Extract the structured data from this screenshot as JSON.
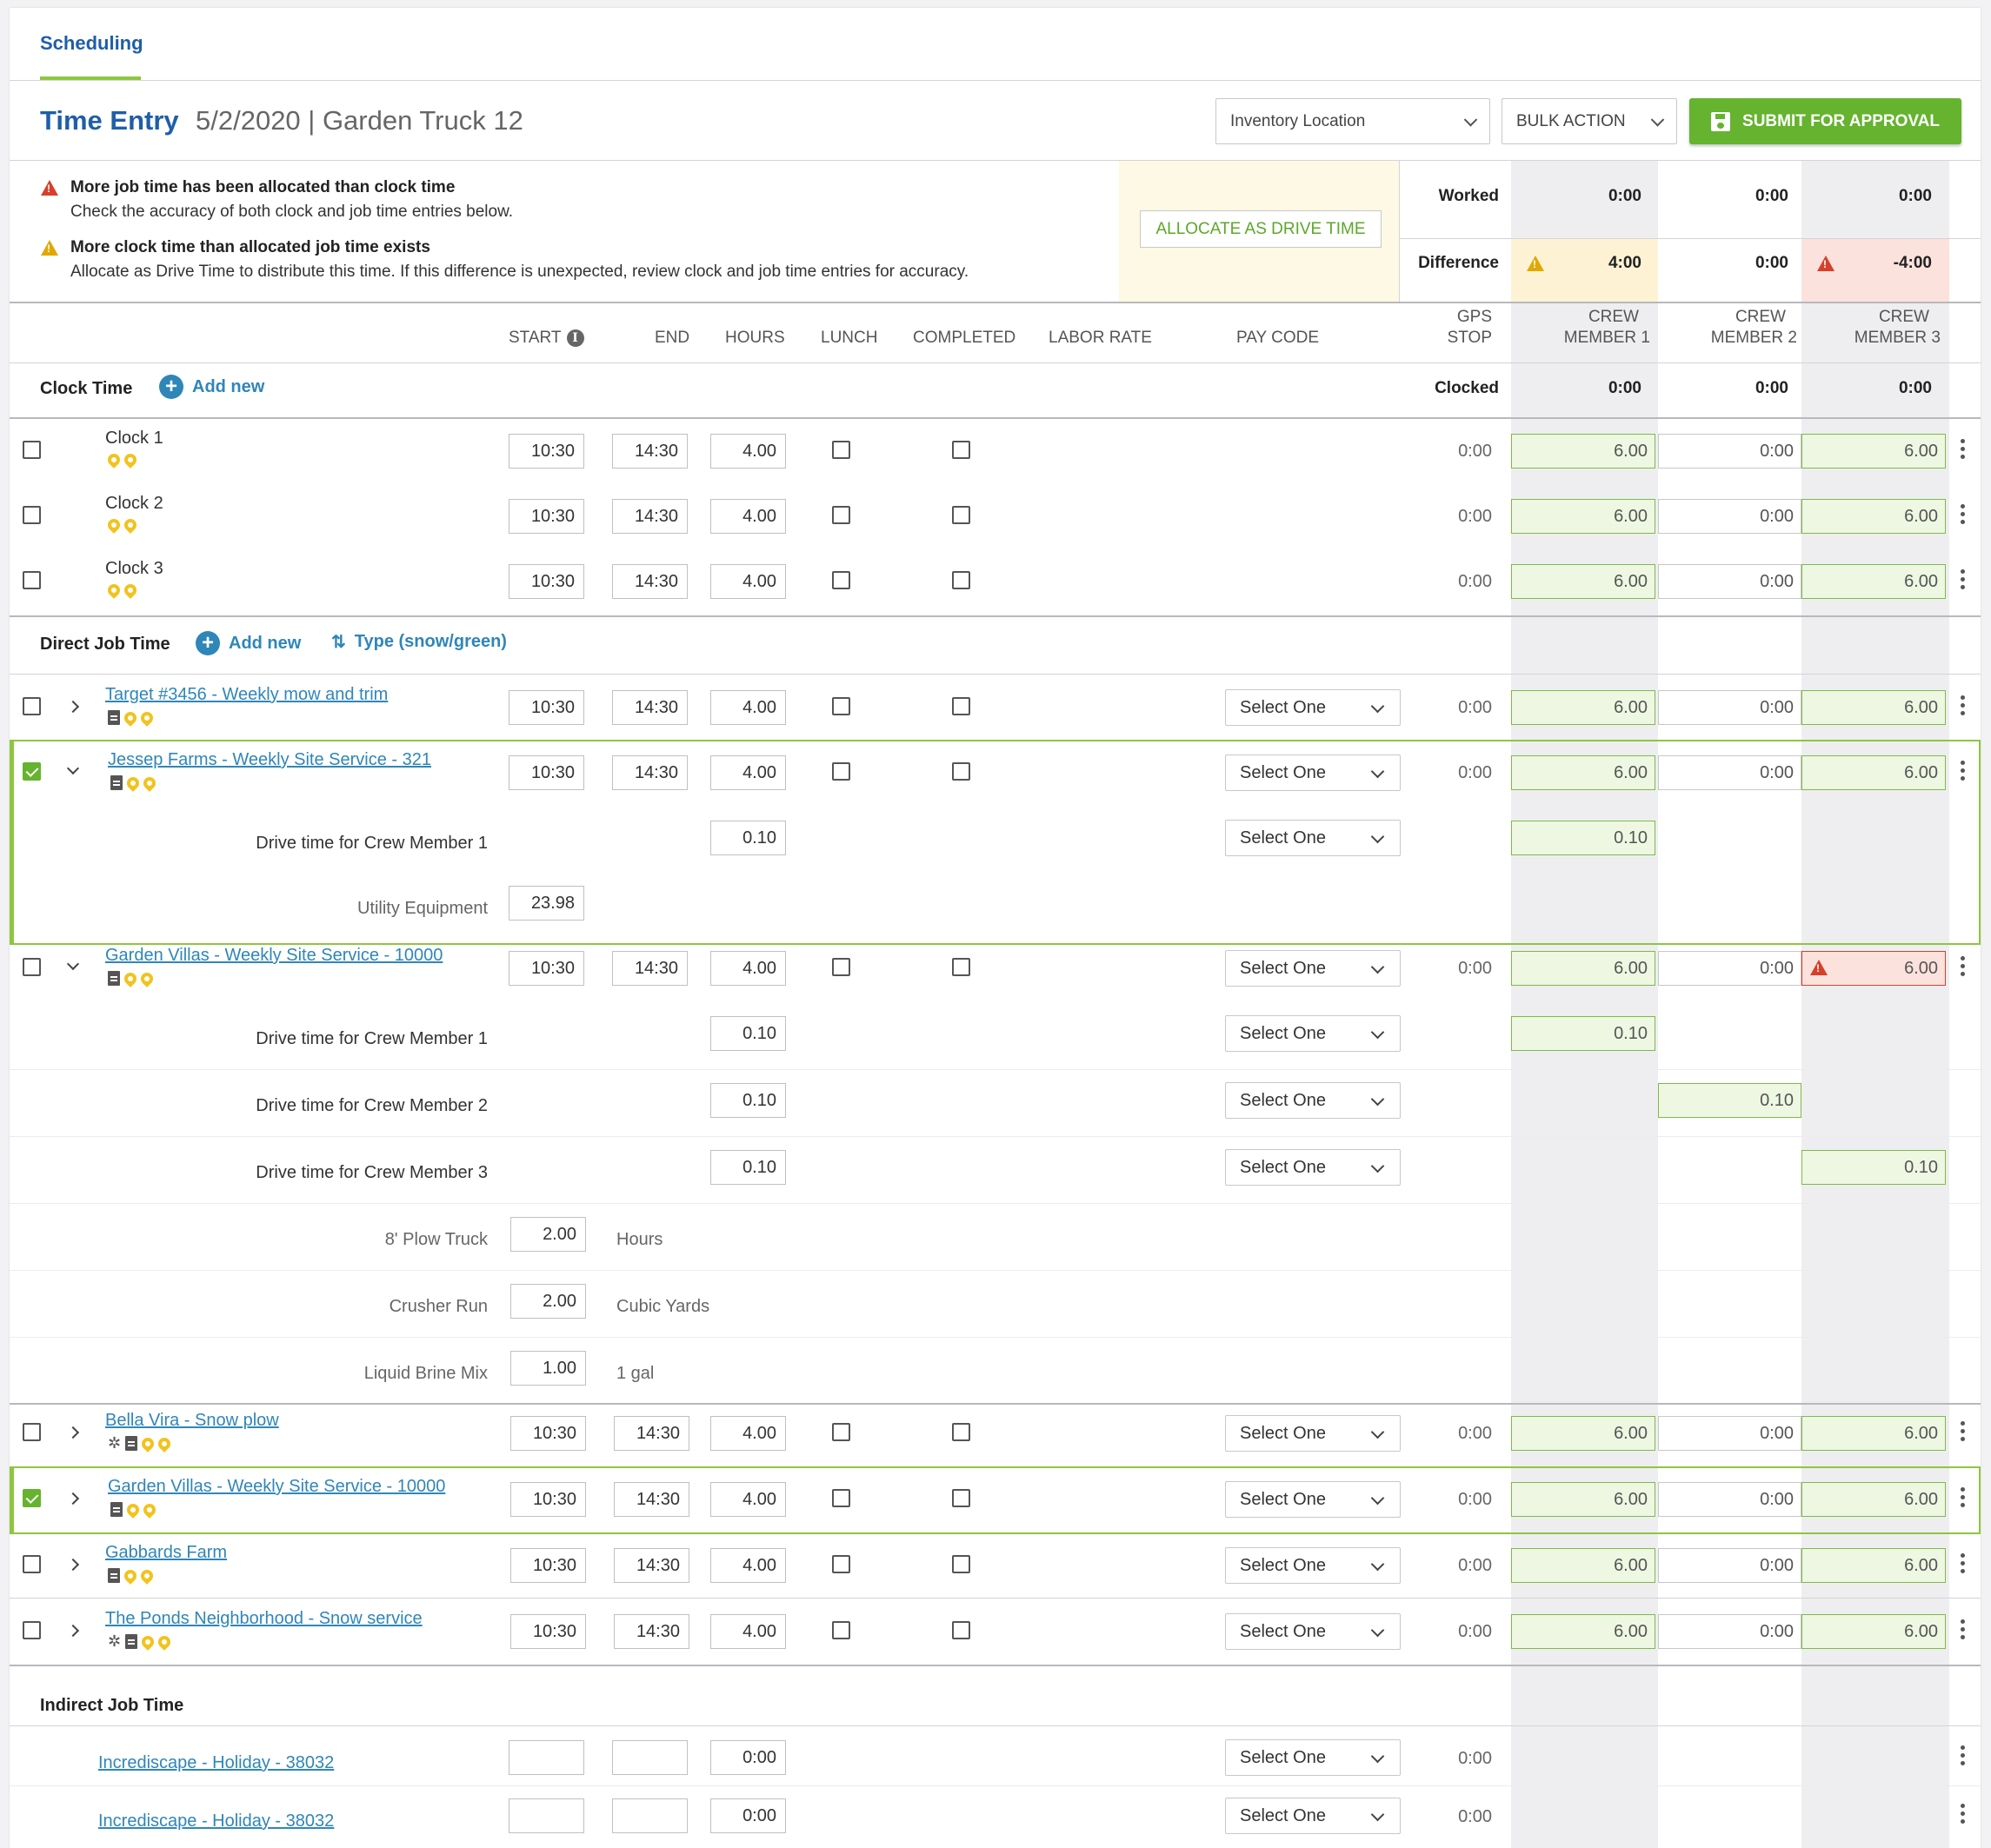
{
  "tab": "Scheduling",
  "header": {
    "title": "Time Entry",
    "subtitle": "5/2/2020 | Garden Truck 12",
    "inventory_location": "Inventory Location",
    "bulk_action": "BULK ACTION",
    "submit": "SUBMIT FOR APPROVAL"
  },
  "alerts": {
    "error_title": "More job time has been allocated than clock time",
    "error_text": "Check the accuracy of both clock and job time entries below.",
    "warn_title": "More clock time than allocated job time exists",
    "warn_text": "Allocate as Drive Time to distribute this time. If this difference is unexpected, review clock and job time entries for accuracy.",
    "allocate_button": "ALLOCATE AS DRIVE TIME"
  },
  "summary": {
    "worked_label": "Worked",
    "worked": [
      "0:00",
      "0:00",
      "0:00"
    ],
    "difference_label": "Difference",
    "difference": [
      "4:00",
      "0:00",
      "-4:00"
    ],
    "clocked_label": "Clocked",
    "clocked": [
      "0:00",
      "0:00",
      "0:00"
    ]
  },
  "columns": {
    "start": "START",
    "end": "END",
    "hours": "HOURS",
    "lunch": "LUNCH",
    "completed": "COMPLETED",
    "labor_rate": "LABOR RATE",
    "pay_code": "PAY CODE",
    "gps1": "GPS",
    "gps2": "STOP",
    "crew": "CREW",
    "m1": "MEMBER 1",
    "m2": "MEMBER 2",
    "m3": "MEMBER 3"
  },
  "clock_section": {
    "title": "Clock Time",
    "add_new": "Add new",
    "rows": [
      {
        "label": "Clock 1",
        "start": "10:30",
        "end": "14:30",
        "hours": "4.00",
        "gps": "0:00",
        "c1": "6.00",
        "c2": "0:00",
        "c3": "6.00"
      },
      {
        "label": "Clock 2",
        "start": "10:30",
        "end": "14:30",
        "hours": "4.00",
        "gps": "0:00",
        "c1": "6.00",
        "c2": "0:00",
        "c3": "6.00"
      },
      {
        "label": "Clock 3",
        "start": "10:30",
        "end": "14:30",
        "hours": "4.00",
        "gps": "0:00",
        "c1": "6.00",
        "c2": "0:00",
        "c3": "6.00"
      }
    ]
  },
  "direct_section": {
    "title": "Direct Job Time",
    "add_new": "Add new",
    "type": "Type (snow/green)",
    "select_one": "Select One",
    "jobs": [
      {
        "name": "Target #3456 - Weekly mow and trim",
        "start": "10:30",
        "end": "14:30",
        "hours": "4.00",
        "gps": "0:00",
        "c1": "6.00",
        "c2": "0:00",
        "c3": "6.00"
      },
      {
        "name": "Jessep Farms - Weekly Site Service  - 321",
        "start": "10:30",
        "end": "14:30",
        "hours": "4.00",
        "gps": "0:00",
        "c1": "6.00",
        "c2": "0:00",
        "c3": "6.00"
      },
      {
        "name": "Garden Villas - Weekly Site Service  - 10000",
        "start": "10:30",
        "end": "14:30",
        "hours": "4.00",
        "gps": "0:00",
        "c1": "6.00",
        "c2": "0:00",
        "c3": "6.00"
      },
      {
        "name": "Bella Vira - Snow plow",
        "start": "10:30",
        "end": "14:30",
        "hours": "4.00",
        "gps": "0:00",
        "c1": "6.00",
        "c2": "0:00",
        "c3": "6.00"
      },
      {
        "name": "Garden Villas - Weekly Site Service - 10000",
        "start": "10:30",
        "end": "14:30",
        "hours": "4.00",
        "gps": "0:00",
        "c1": "6.00",
        "c2": "0:00",
        "c3": "6.00"
      },
      {
        "name": "Gabbards Farm",
        "start": "10:30",
        "end": "14:30",
        "hours": "4.00",
        "gps": "0:00",
        "c1": "6.00",
        "c2": "0:00",
        "c3": "6.00"
      },
      {
        "name": "The Ponds Neighborhood - Snow service",
        "start": "10:30",
        "end": "14:30",
        "hours": "4.00",
        "gps": "0:00",
        "c1": "6.00",
        "c2": "0:00",
        "c3": "6.00"
      }
    ],
    "jessep_sub": {
      "drive_label": "Drive time for Crew Member 1",
      "drive_hours": "0.10",
      "drive_c1": "0.10",
      "equip_label": "Utility Equipment",
      "equip_value": "23.98"
    },
    "garden_sub": {
      "drive": [
        {
          "label": "Drive time for Crew Member 1",
          "hours": "0.10",
          "val": "0.10"
        },
        {
          "label": "Drive time for Crew Member 2",
          "hours": "0.10",
          "val": "0.10"
        },
        {
          "label": "Drive time for Crew Member 3",
          "hours": "0.10",
          "val": "0.10"
        }
      ],
      "materials": [
        {
          "label": "8' Plow Truck",
          "value": "2.00",
          "unit": "Hours"
        },
        {
          "label": "Crusher Run",
          "value": "2.00",
          "unit": "Cubic Yards"
        },
        {
          "label": "Liquid Brine Mix",
          "value": "1.00",
          "unit": "1 gal"
        }
      ]
    }
  },
  "indirect_section": {
    "title": "Indirect Job Time",
    "rows": [
      {
        "name": "Incrediscape - Holiday - 38032",
        "hours": "0:00",
        "gps": "0:00"
      },
      {
        "name": "Incrediscape - Holiday - 38032",
        "hours": "0:00",
        "gps": "0:00"
      }
    ]
  }
}
